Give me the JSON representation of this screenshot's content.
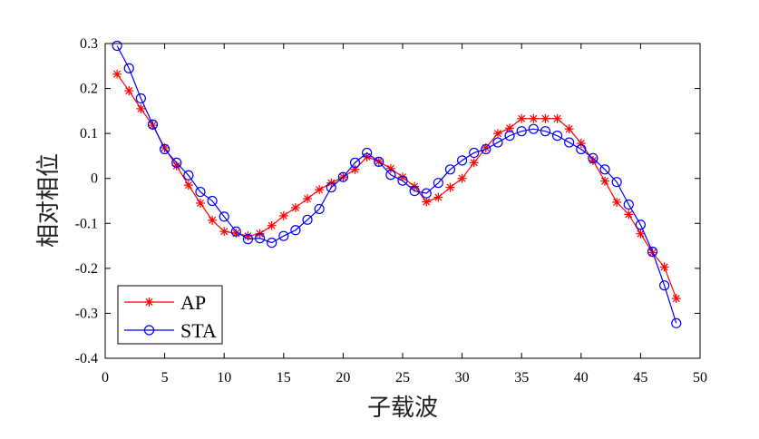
{
  "chart_data": {
    "type": "line",
    "title": "",
    "xlabel": "子载波",
    "ylabel": "相对相位",
    "xlim": [
      0,
      50
    ],
    "ylim": [
      -0.4,
      0.3
    ],
    "xticks": [
      0,
      5,
      10,
      15,
      20,
      25,
      30,
      35,
      40,
      45,
      50
    ],
    "yticks": [
      -0.4,
      -0.3,
      -0.2,
      -0.1,
      0,
      0.1,
      0.2,
      0.3
    ],
    "xtick_labels": [
      "0",
      "5",
      "10",
      "15",
      "20",
      "25",
      "30",
      "35",
      "40",
      "45",
      "50"
    ],
    "ytick_labels": [
      "-0.4",
      "-0.3",
      "-0.2",
      "-0.1",
      "0",
      "0.1",
      "0.2",
      "0.3"
    ],
    "grid": false,
    "legend_position": "bottom-left",
    "x": [
      1,
      2,
      3,
      4,
      5,
      6,
      7,
      8,
      9,
      10,
      11,
      12,
      13,
      14,
      15,
      16,
      17,
      18,
      19,
      20,
      21,
      22,
      23,
      24,
      25,
      26,
      27,
      28,
      29,
      30,
      31,
      32,
      33,
      34,
      35,
      36,
      37,
      38,
      39,
      40,
      41,
      42,
      43,
      44,
      45,
      46,
      47,
      48
    ],
    "series": [
      {
        "name": "AP",
        "color": "#ff0000",
        "marker": "asterisk",
        "values": [
          0.232,
          0.195,
          0.155,
          0.118,
          0.068,
          0.028,
          -0.015,
          -0.055,
          -0.093,
          -0.118,
          -0.122,
          -0.128,
          -0.123,
          -0.105,
          -0.083,
          -0.065,
          -0.045,
          -0.025,
          -0.01,
          0.003,
          0.02,
          0.048,
          0.038,
          0.022,
          0.003,
          -0.018,
          -0.052,
          -0.042,
          -0.02,
          0.0,
          0.035,
          0.068,
          0.1,
          0.112,
          0.133,
          0.133,
          0.133,
          0.133,
          0.11,
          0.078,
          0.04,
          -0.006,
          -0.053,
          -0.08,
          -0.123,
          -0.165,
          -0.197,
          -0.267
        ]
      },
      {
        "name": "STA",
        "color": "#0000ff",
        "marker": "circle",
        "values": [
          0.295,
          0.245,
          0.178,
          0.12,
          0.065,
          0.035,
          0.007,
          -0.03,
          -0.05,
          -0.085,
          -0.118,
          -0.135,
          -0.133,
          -0.143,
          -0.128,
          -0.115,
          -0.092,
          -0.068,
          -0.02,
          0.003,
          0.035,
          0.057,
          0.037,
          0.008,
          -0.005,
          -0.028,
          -0.033,
          -0.01,
          0.02,
          0.04,
          0.057,
          0.065,
          0.08,
          0.095,
          0.105,
          0.11,
          0.105,
          0.095,
          0.08,
          0.065,
          0.045,
          0.02,
          -0.008,
          -0.058,
          -0.103,
          -0.163,
          -0.238,
          -0.322
        ]
      }
    ]
  }
}
